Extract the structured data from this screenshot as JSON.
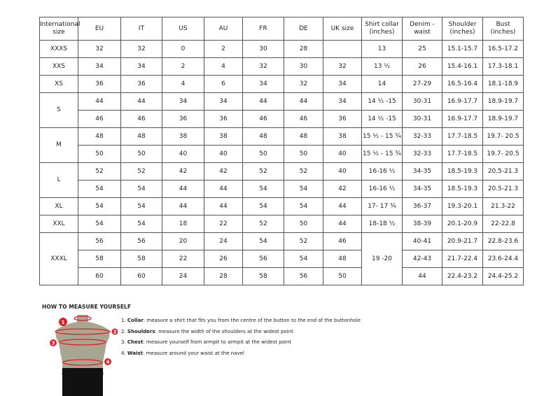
{
  "headers": [
    "International size",
    "EU",
    "IT",
    "US",
    "AU",
    "FR",
    "DE",
    "UK size",
    "Shirt collar (inches)",
    "Denim - waist",
    "Shoulder (inches)",
    "Bust (inches)"
  ],
  "rows": [
    [
      "XXXS",
      "32",
      "32",
      "0",
      "2",
      "30",
      "28",
      "",
      "13",
      "25",
      "15.1-15.7",
      "16.5-17.2"
    ],
    [
      "XXS",
      "34",
      "34",
      "2",
      "4",
      "32",
      "30",
      "32",
      "13 ½",
      "26",
      "15.4-16.1",
      "17.3-18.1"
    ],
    [
      "XS",
      "36",
      "36",
      "4",
      "6",
      "34",
      "32",
      "34",
      "14",
      "27-29",
      "16.5-16.4",
      "18.1-18.9"
    ],
    [
      "S",
      "44",
      "44",
      "34",
      "34",
      "44",
      "44",
      "34",
      "14 ½ -15",
      "30-31",
      "16.9-17.7",
      "18.9-19.7"
    ],
    [
      "",
      "46",
      "46",
      "36",
      "36",
      "46",
      "46",
      "36",
      "14 ½ -15",
      "30-31",
      "16.9-17.7",
      "18.9-19.7"
    ],
    [
      "M",
      "48",
      "48",
      "38",
      "38",
      "48",
      "48",
      "38",
      "15 ½ - 15 ¾",
      "32-33",
      "17.7-18.5",
      "19.7- 20.5"
    ],
    [
      "",
      "50",
      "50",
      "40",
      "40",
      "50",
      "50",
      "40",
      "15 ½ - 15 ¾",
      "32-33",
      "17.7-18.5",
      "19.7- 20.5"
    ],
    [
      "L",
      "52",
      "52",
      "42",
      "42",
      "52",
      "52",
      "40",
      "16-16 ½",
      "34-35",
      "18.5-19.3",
      "20.5-21.3"
    ],
    [
      "",
      "54",
      "54",
      "44",
      "44",
      "54",
      "54",
      "42",
      "16-16 ½",
      "34-35",
      "18.5-19.3",
      "20.5-21.3"
    ],
    [
      "XL",
      "54",
      "54",
      "44",
      "44",
      "54",
      "54",
      "44",
      "17- 17 ¾",
      "36-37",
      "19.3-20.1",
      "21.3-22"
    ],
    [
      "XXL",
      "54",
      "54",
      "18",
      "22",
      "52",
      "50",
      "44",
      "18-18 ½",
      "38-39",
      "20.1-20.9",
      "22-22.8"
    ],
    [
      "XXXL",
      "56",
      "56",
      "20",
      "24",
      "54",
      "52",
      "46",
      "19 -20",
      "40-41",
      "20.9-21.7",
      "22.8-23.6"
    ],
    [
      "",
      "58",
      "58",
      "22",
      "26",
      "56",
      "54",
      "48",
      "",
      "42-43",
      "21.7-22.4",
      "23.6-24.4"
    ],
    [
      "",
      "60",
      "60",
      "24",
      "28",
      "58",
      "56",
      "50",
      "",
      "44",
      "22.4-23.2",
      "24.4-25.2"
    ]
  ],
  "guide": {
    "title": "HOW TO MEASURE YOURSELF",
    "steps": [
      {
        "num": "1.",
        "label": "Collar",
        "text": ": measure a shirt that fits you from the centre of the button to the end of the buttonhole"
      },
      {
        "num": "2.",
        "label": "Shoulders",
        "text": ": measure the width of the shoulders at the widest point"
      },
      {
        "num": "3.",
        "label": "Chest",
        "text": ": measure yourself from armpit to armpit at the widest point"
      },
      {
        "num": "4.",
        "label": "Waist",
        "text": ": measure around your waist at the navel"
      }
    ],
    "markers": [
      "1",
      "2",
      "3",
      "4"
    ]
  },
  "colors": {
    "accent": "#e0202a",
    "torso": "#a8a690",
    "pants": "#111111"
  }
}
